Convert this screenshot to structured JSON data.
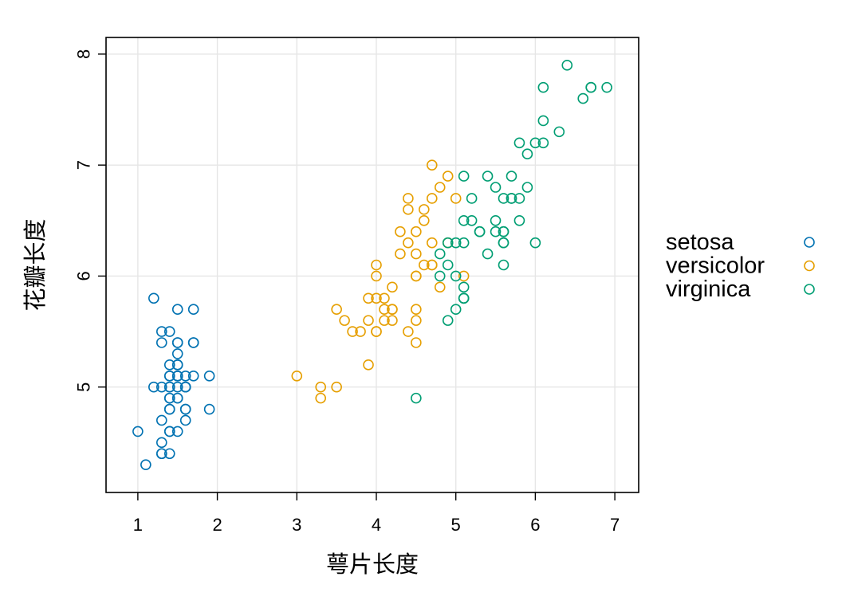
{
  "chart_data": {
    "type": "scatter",
    "title": "",
    "xlabel": "萼片长度",
    "ylabel": "花瓣长度",
    "xlim": [
      0.6,
      7.3
    ],
    "ylim": [
      4.05,
      8.15
    ],
    "xticks": [
      1,
      2,
      3,
      4,
      5,
      6,
      7
    ],
    "yticks": [
      5,
      6,
      7,
      8
    ],
    "grid": true,
    "legend_position": "right",
    "marker": "open-circle",
    "series": [
      {
        "name": "setosa",
        "color": "#0072B2",
        "points": [
          [
            1.4,
            5.1
          ],
          [
            1.4,
            4.9
          ],
          [
            1.3,
            4.7
          ],
          [
            1.5,
            4.6
          ],
          [
            1.4,
            5.0
          ],
          [
            1.7,
            5.4
          ],
          [
            1.4,
            4.6
          ],
          [
            1.5,
            5.0
          ],
          [
            1.4,
            4.4
          ],
          [
            1.5,
            4.9
          ],
          [
            1.5,
            5.4
          ],
          [
            1.6,
            4.8
          ],
          [
            1.4,
            4.8
          ],
          [
            1.1,
            4.3
          ],
          [
            1.2,
            5.8
          ],
          [
            1.5,
            5.7
          ],
          [
            1.3,
            5.4
          ],
          [
            1.4,
            5.1
          ],
          [
            1.7,
            5.7
          ],
          [
            1.5,
            5.1
          ],
          [
            1.7,
            5.4
          ],
          [
            1.5,
            5.1
          ],
          [
            1.0,
            4.6
          ],
          [
            1.7,
            5.1
          ],
          [
            1.9,
            4.8
          ],
          [
            1.6,
            5.0
          ],
          [
            1.6,
            5.0
          ],
          [
            1.5,
            5.2
          ],
          [
            1.4,
            5.2
          ],
          [
            1.6,
            4.7
          ],
          [
            1.6,
            4.8
          ],
          [
            1.5,
            5.4
          ],
          [
            1.5,
            5.2
          ],
          [
            1.4,
            5.5
          ],
          [
            1.5,
            4.9
          ],
          [
            1.2,
            5.0
          ],
          [
            1.3,
            5.5
          ],
          [
            1.4,
            4.9
          ],
          [
            1.3,
            4.4
          ],
          [
            1.5,
            5.1
          ],
          [
            1.3,
            5.0
          ],
          [
            1.3,
            4.5
          ],
          [
            1.3,
            4.4
          ],
          [
            1.6,
            5.0
          ],
          [
            1.9,
            5.1
          ],
          [
            1.4,
            4.8
          ],
          [
            1.6,
            5.1
          ],
          [
            1.4,
            4.6
          ],
          [
            1.5,
            5.3
          ],
          [
            1.4,
            5.0
          ]
        ]
      },
      {
        "name": "versicolor",
        "color": "#E69F00",
        "points": [
          [
            4.7,
            7.0
          ],
          [
            4.5,
            6.4
          ],
          [
            4.9,
            6.9
          ],
          [
            4.0,
            5.5
          ],
          [
            4.6,
            6.5
          ],
          [
            4.5,
            5.7
          ],
          [
            4.7,
            6.3
          ],
          [
            3.3,
            4.9
          ],
          [
            4.6,
            6.6
          ],
          [
            3.9,
            5.2
          ],
          [
            3.5,
            5.0
          ],
          [
            4.2,
            5.9
          ],
          [
            4.0,
            6.0
          ],
          [
            4.7,
            6.1
          ],
          [
            3.6,
            5.6
          ],
          [
            4.4,
            6.7
          ],
          [
            4.5,
            5.6
          ],
          [
            4.1,
            5.8
          ],
          [
            4.5,
            6.2
          ],
          [
            3.9,
            5.6
          ],
          [
            4.8,
            5.9
          ],
          [
            4.0,
            6.1
          ],
          [
            4.9,
            6.3
          ],
          [
            4.7,
            6.1
          ],
          [
            4.3,
            6.4
          ],
          [
            4.4,
            6.6
          ],
          [
            4.8,
            6.8
          ],
          [
            5.0,
            6.7
          ],
          [
            4.5,
            6.0
          ],
          [
            3.5,
            5.7
          ],
          [
            3.8,
            5.5
          ],
          [
            3.7,
            5.5
          ],
          [
            3.9,
            5.8
          ],
          [
            5.1,
            6.0
          ],
          [
            4.5,
            5.4
          ],
          [
            4.5,
            6.0
          ],
          [
            4.7,
            6.7
          ],
          [
            4.4,
            6.3
          ],
          [
            4.1,
            5.6
          ],
          [
            4.0,
            5.5
          ],
          [
            4.4,
            5.5
          ],
          [
            4.6,
            6.1
          ],
          [
            4.0,
            5.8
          ],
          [
            3.3,
            5.0
          ],
          [
            4.2,
            5.6
          ],
          [
            4.2,
            5.7
          ],
          [
            4.2,
            5.7
          ],
          [
            4.3,
            6.2
          ],
          [
            3.0,
            5.1
          ],
          [
            4.1,
            5.7
          ]
        ]
      },
      {
        "name": "virginica",
        "color": "#009E73",
        "points": [
          [
            6.0,
            6.3
          ],
          [
            5.1,
            5.8
          ],
          [
            5.9,
            7.1
          ],
          [
            5.6,
            6.3
          ],
          [
            5.8,
            6.5
          ],
          [
            6.6,
            7.6
          ],
          [
            4.5,
            4.9
          ],
          [
            6.3,
            7.3
          ],
          [
            5.8,
            6.7
          ],
          [
            6.1,
            7.2
          ],
          [
            5.1,
            6.5
          ],
          [
            5.3,
            6.4
          ],
          [
            5.5,
            6.8
          ],
          [
            5.0,
            5.7
          ],
          [
            5.1,
            5.8
          ],
          [
            5.3,
            6.4
          ],
          [
            5.5,
            6.5
          ],
          [
            6.7,
            7.7
          ],
          [
            6.9,
            7.7
          ],
          [
            5.0,
            6.0
          ],
          [
            5.7,
            6.9
          ],
          [
            4.9,
            5.6
          ],
          [
            6.7,
            7.7
          ],
          [
            4.9,
            6.3
          ],
          [
            5.7,
            6.7
          ],
          [
            6.0,
            7.2
          ],
          [
            4.8,
            6.2
          ],
          [
            4.9,
            6.1
          ],
          [
            5.6,
            6.4
          ],
          [
            5.8,
            7.2
          ],
          [
            6.1,
            7.4
          ],
          [
            6.4,
            7.9
          ],
          [
            5.6,
            6.4
          ],
          [
            5.1,
            6.3
          ],
          [
            5.6,
            6.1
          ],
          [
            6.1,
            7.7
          ],
          [
            5.6,
            6.3
          ],
          [
            5.5,
            6.4
          ],
          [
            4.8,
            6.0
          ],
          [
            5.4,
            6.9
          ],
          [
            5.6,
            6.7
          ],
          [
            5.1,
            6.9
          ],
          [
            5.1,
            5.8
          ],
          [
            5.9,
            6.8
          ],
          [
            5.7,
            6.7
          ],
          [
            5.2,
            6.7
          ],
          [
            5.0,
            6.3
          ],
          [
            5.2,
            6.5
          ],
          [
            5.4,
            6.2
          ],
          [
            5.1,
            5.9
          ]
        ]
      }
    ]
  }
}
